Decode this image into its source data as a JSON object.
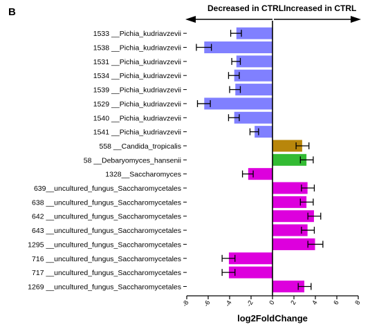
{
  "panel_label": "B",
  "directions": {
    "left": "Decreased in CTRL",
    "right": "Increased in CTRL"
  },
  "colors": {
    "blue": "#8080ff",
    "gold": "#b8860b",
    "green": "#33bb33",
    "magenta": "#dd00dd"
  },
  "chart_data": {
    "type": "bar",
    "orientation": "horizontal",
    "xlabel": "log2FoldChange",
    "ylabel": "",
    "xlim": [
      -8,
      8
    ],
    "xticks": [
      "-8",
      "-6",
      "-4",
      "-2",
      "0",
      "2",
      "4",
      "6",
      "8"
    ],
    "grid": false,
    "categories": [
      "1533 __Pichia_kudriavzevii",
      "1538 __Pichia_kudriavzevii",
      "1531 __Pichia_kudriavzevii",
      "1534 __Pichia_kudriavzevii",
      "1539 __Pichia_kudriavzevii",
      "1529 __Pichia_kudriavzevii",
      "1540 __Pichia_kudriavzevii",
      "1541 __Pichia_kudriavzevii",
      "558 __Candida_tropicalis",
      "58 __Debaryomyces_hansenii",
      "1328__Saccharomyces",
      "639__uncultured_fungus_Saccharomycetales",
      "638 __uncultured_fungus_Saccharomycetales",
      "642 __uncultured_fungus_Saccharomycetales",
      "643 __uncultured_fungus_Saccharomycetales",
      "1295 __uncultured_fungus_Saccharomycetales",
      "716 __uncultured_fungus_Saccharomycetales",
      "717 __uncultured_fungus_Saccharomycetales",
      "1269 __uncultured_fungus_Saccharomycetales"
    ],
    "values": [
      -3.4,
      -6.4,
      -3.4,
      -3.6,
      -3.5,
      -6.4,
      -3.6,
      -1.7,
      2.8,
      3.2,
      -2.3,
      3.3,
      3.2,
      3.9,
      3.3,
      4.0,
      -4.1,
      -4.1,
      3.0
    ],
    "errors": [
      0.5,
      0.7,
      0.4,
      0.5,
      0.5,
      0.6,
      0.5,
      0.4,
      0.6,
      0.6,
      0.5,
      0.6,
      0.6,
      0.6,
      0.6,
      0.7,
      0.6,
      0.6,
      0.6
    ],
    "bar_colors": [
      "blue",
      "blue",
      "blue",
      "blue",
      "blue",
      "blue",
      "blue",
      "blue",
      "gold",
      "green",
      "magenta",
      "magenta",
      "magenta",
      "magenta",
      "magenta",
      "magenta",
      "magenta",
      "magenta",
      "magenta"
    ]
  }
}
